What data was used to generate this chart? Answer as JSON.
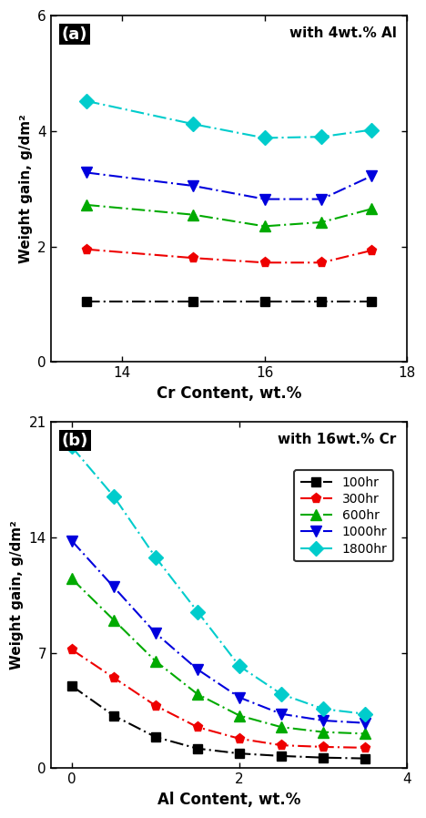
{
  "panel_a": {
    "title_text": "with 4wt.% Al",
    "xlabel": "Cr Content, wt.%",
    "ylabel": "Weight gain, g/dm²",
    "xlim": [
      13.0,
      18.0
    ],
    "ylim": [
      0,
      6
    ],
    "xticks": [
      14,
      16,
      18
    ],
    "yticks": [
      0,
      2,
      4,
      6
    ],
    "series": [
      {
        "label": "100hr",
        "color": "#000000",
        "marker": "s",
        "x": [
          13.5,
          15.0,
          16.0,
          16.8,
          17.5
        ],
        "y": [
          1.05,
          1.05,
          1.05,
          1.05,
          1.05
        ]
      },
      {
        "label": "300hr",
        "color": "#ee0000",
        "marker": "p",
        "x": [
          13.5,
          15.0,
          16.0,
          16.8,
          17.5
        ],
        "y": [
          1.95,
          1.8,
          1.72,
          1.72,
          1.93
        ]
      },
      {
        "label": "600hr",
        "color": "#00aa00",
        "marker": "^",
        "x": [
          13.5,
          15.0,
          16.0,
          16.8,
          17.5
        ],
        "y": [
          2.72,
          2.55,
          2.35,
          2.42,
          2.65
        ]
      },
      {
        "label": "1000hr",
        "color": "#0000dd",
        "marker": "v",
        "x": [
          13.5,
          15.0,
          16.0,
          16.8,
          17.5
        ],
        "y": [
          3.28,
          3.05,
          2.82,
          2.82,
          3.22
        ]
      },
      {
        "label": "1800hr",
        "color": "#00cccc",
        "marker": "D",
        "x": [
          13.5,
          15.0,
          16.0,
          16.8,
          17.5
        ],
        "y": [
          4.52,
          4.12,
          3.88,
          3.9,
          4.02
        ]
      }
    ]
  },
  "panel_b": {
    "title_text": "with 16wt.% Cr",
    "xlabel": "Al Content, wt.%",
    "ylabel": "Weight gain, g/dm²",
    "xlim": [
      -0.25,
      4.0
    ],
    "ylim": [
      0,
      21
    ],
    "xticks": [
      0,
      2,
      4
    ],
    "yticks": [
      0,
      7,
      14,
      21
    ],
    "series": [
      {
        "label": "100hr",
        "color": "#000000",
        "marker": "s",
        "x": [
          0.0,
          0.5,
          1.0,
          1.5,
          2.0,
          2.5,
          3.0,
          3.5
        ],
        "y": [
          5.0,
          3.2,
          1.9,
          1.2,
          0.9,
          0.75,
          0.65,
          0.6
        ]
      },
      {
        "label": "300hr",
        "color": "#ee0000",
        "marker": "p",
        "x": [
          0.0,
          0.5,
          1.0,
          1.5,
          2.0,
          2.5,
          3.0,
          3.5
        ],
        "y": [
          7.2,
          5.5,
          3.8,
          2.5,
          1.8,
          1.4,
          1.3,
          1.25
        ]
      },
      {
        "label": "600hr",
        "color": "#00aa00",
        "marker": "^",
        "x": [
          0.0,
          0.5,
          1.0,
          1.5,
          2.0,
          2.5,
          3.0,
          3.5
        ],
        "y": [
          11.5,
          9.0,
          6.5,
          4.5,
          3.2,
          2.5,
          2.2,
          2.1
        ]
      },
      {
        "label": "1000hr",
        "color": "#0000dd",
        "marker": "v",
        "x": [
          0.0,
          0.5,
          1.0,
          1.5,
          2.0,
          2.5,
          3.0,
          3.5
        ],
        "y": [
          13.8,
          11.0,
          8.2,
          6.0,
          4.3,
          3.3,
          2.9,
          2.75
        ]
      },
      {
        "label": "1800hr",
        "color": "#00cccc",
        "marker": "D",
        "x": [
          0.0,
          0.5,
          1.0,
          1.5,
          2.0,
          2.5,
          3.0,
          3.5
        ],
        "y": [
          19.5,
          16.5,
          12.8,
          9.5,
          6.2,
          4.5,
          3.6,
          3.3
        ]
      }
    ]
  },
  "legend_labels": [
    "100hr",
    "300hr",
    "600hr",
    "1000hr",
    "1800hr"
  ],
  "background_color": "#ffffff"
}
